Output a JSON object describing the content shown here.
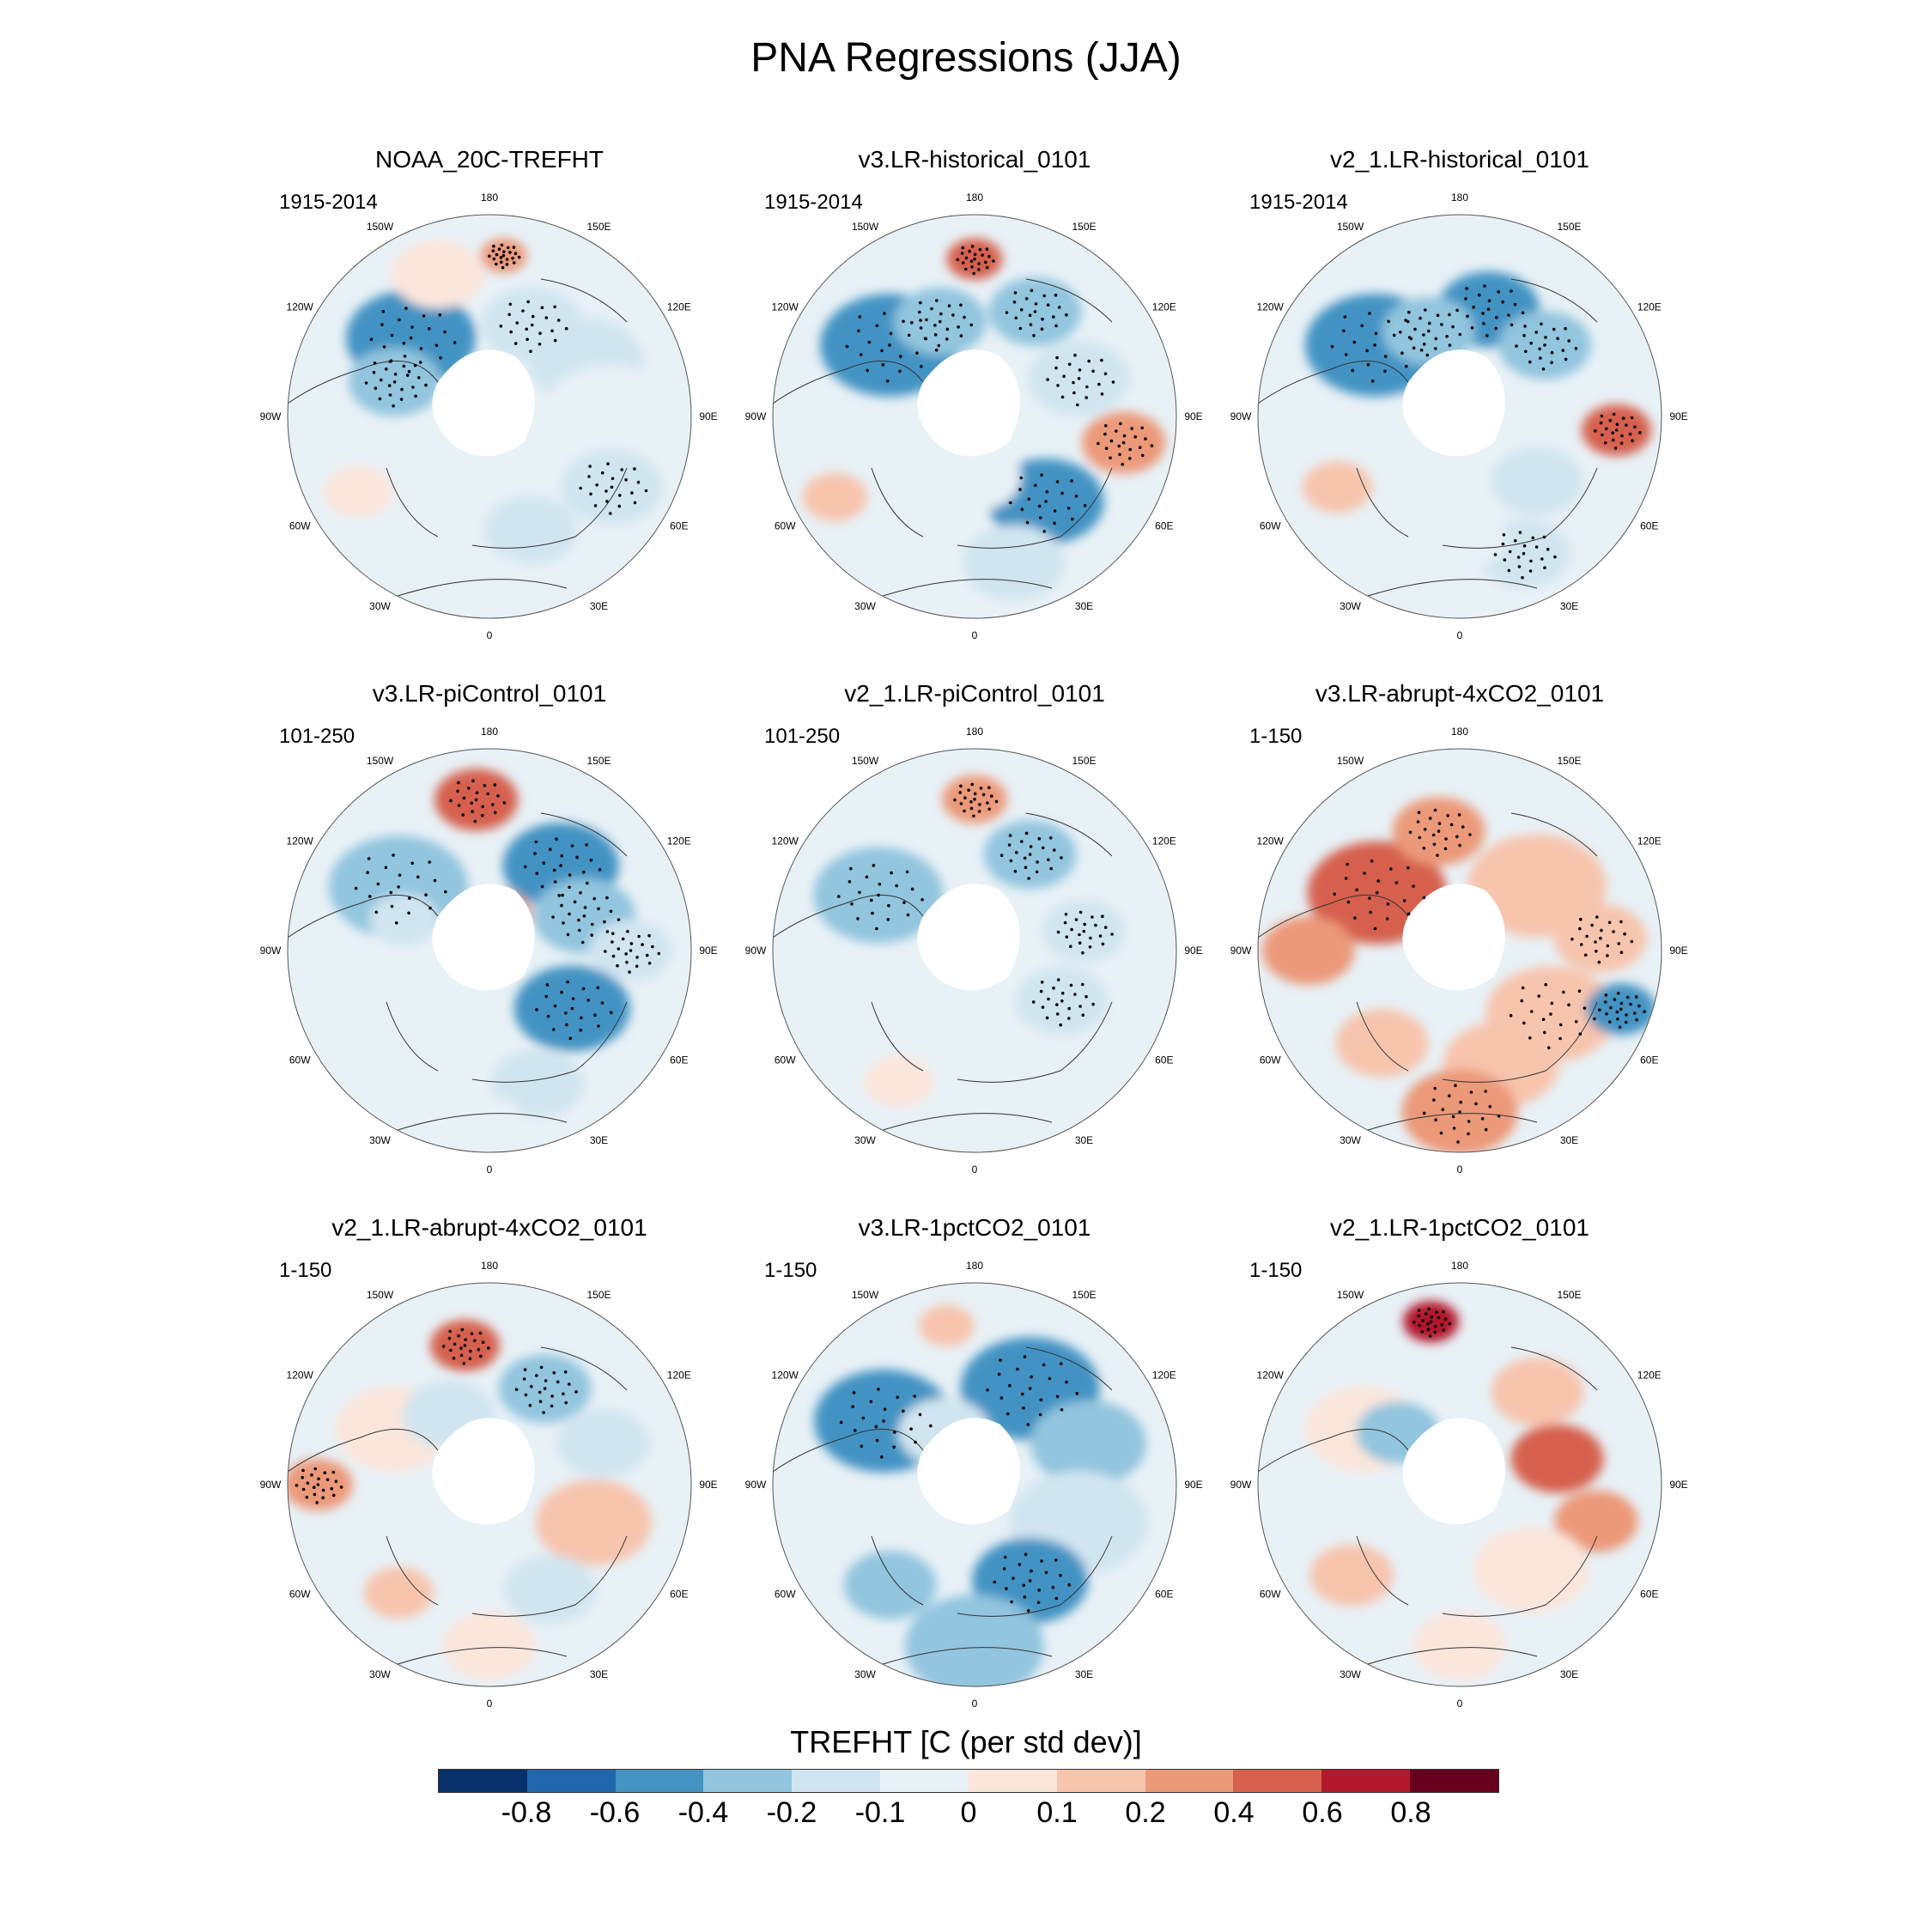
{
  "title": "PNA Regressions (JJA)",
  "panels": [
    {
      "title": "NOAA_20C-TREFHT",
      "years": "1915-2014",
      "pattern": "noaa"
    },
    {
      "title": "v3.LR-historical_0101",
      "years": "1915-2014",
      "pattern": "v3hist"
    },
    {
      "title": "v2_1.LR-historical_0101",
      "years": "1915-2014",
      "pattern": "v2hist"
    },
    {
      "title": "v3.LR-piControl_0101",
      "years": "101-250",
      "pattern": "v3pi"
    },
    {
      "title": "v2_1.LR-piControl_0101",
      "years": "101-250",
      "pattern": "v2pi"
    },
    {
      "title": "v3.LR-abrupt-4xCO2_0101",
      "years": "1-150",
      "pattern": "v3abrupt"
    },
    {
      "title": "v2_1.LR-abrupt-4xCO2_0101",
      "years": "1-150",
      "pattern": "v2abrupt"
    },
    {
      "title": "v3.LR-1pctCO2_0101",
      "years": "1-150",
      "pattern": "v3pct"
    },
    {
      "title": "v2_1.LR-1pctCO2_0101",
      "years": "1-150",
      "pattern": "v2pct"
    }
  ],
  "longitude_labels": [
    "180",
    "150E",
    "120E",
    "90E",
    "60E",
    "30E",
    "0",
    "30W",
    "60W",
    "90W",
    "120W",
    "150W"
  ],
  "colorbar": {
    "title": "TREFHT [C (per std dev)]",
    "ticks": [
      "-0.8",
      "-0.6",
      "-0.4",
      "-0.2",
      "-0.1",
      "0",
      "0.1",
      "0.2",
      "0.4",
      "0.6",
      "0.8"
    ],
    "colors": [
      "#08306b",
      "#2166ac",
      "#4393c3",
      "#92c5de",
      "#d1e5f0",
      "#e8f1f6",
      "#fbe6dc",
      "#f7c4ad",
      "#ec9979",
      "#d6604d",
      "#b2182b",
      "#67001f"
    ]
  }
}
